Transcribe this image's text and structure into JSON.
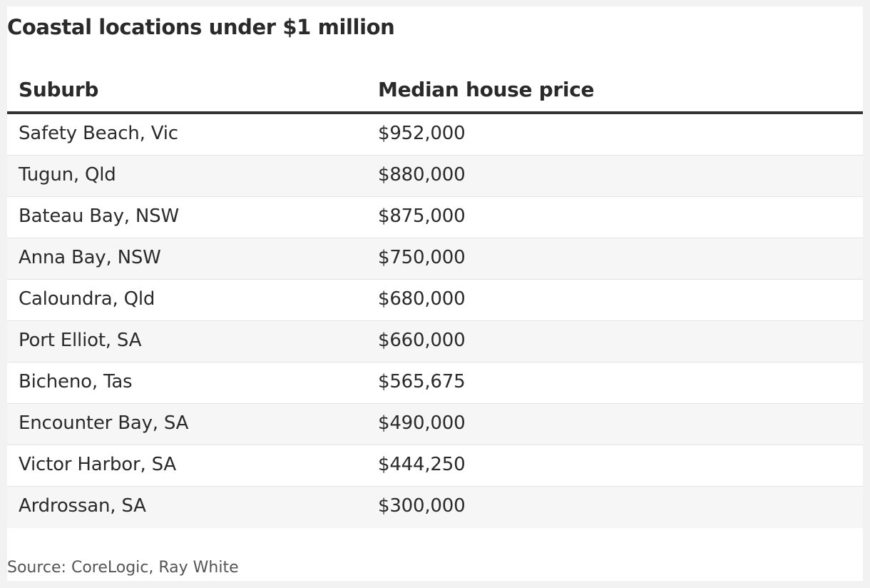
{
  "chart_data": {
    "type": "table",
    "title": "Coastal locations under $1 million",
    "columns": [
      "Suburb",
      "Median house price"
    ],
    "rows": [
      [
        "Safety Beach, Vic",
        "$952,000"
      ],
      [
        "Tugun, Qld",
        "$880,000"
      ],
      [
        "Bateau Bay, NSW",
        "$875,000"
      ],
      [
        "Anna Bay, NSW",
        "$750,000"
      ],
      [
        "Caloundra, Qld",
        "$680,000"
      ],
      [
        "Port Elliot, SA",
        "$660,000"
      ],
      [
        "Bicheno, Tas",
        "$565,675"
      ],
      [
        "Encounter Bay, SA",
        "$490,000"
      ],
      [
        "Victor Harbor, SA",
        "$444,250"
      ],
      [
        "Ardrossan, SA",
        "$300,000"
      ]
    ],
    "source": "Source: CoreLogic, Ray White"
  },
  "colors": {
    "text": "#2a2a2a",
    "header_rule": "#333333",
    "row_divider": "#e3e3e3",
    "row_alt_background": "#f6f6f6",
    "background": "#ffffff",
    "source_text": "#555555"
  }
}
